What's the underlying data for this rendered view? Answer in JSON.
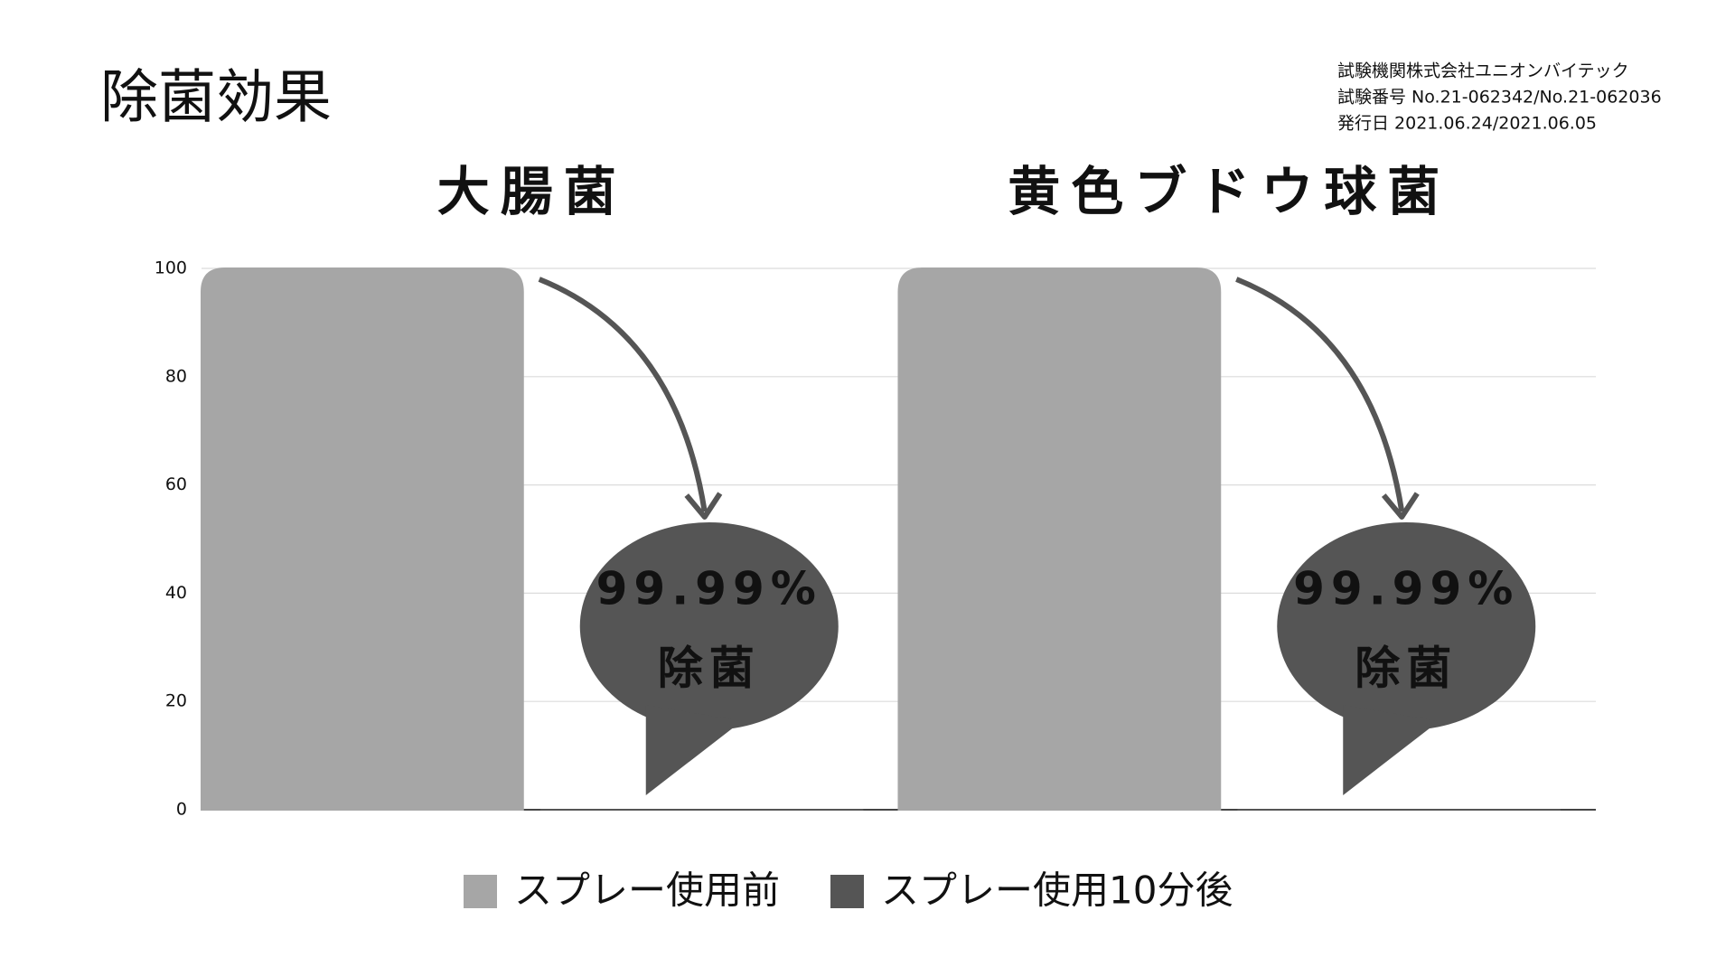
{
  "chart_data": {
    "type": "bar",
    "title": "除菌効果",
    "notes": [
      "試験機関株式会社ユニオンバイテック",
      "試験番号 No.21-062342/No.21-062036",
      "発行日 2021.06.24/2021.06.05"
    ],
    "categories": [
      "大腸菌",
      "黄色ブドウ球菌"
    ],
    "series": [
      {
        "name": "スプレー使用前",
        "color": "#a6a6a6",
        "values": [
          100,
          100
        ]
      },
      {
        "name": "スプレー使用10分後",
        "color": "#555555",
        "values": [
          0.01,
          0.01
        ]
      }
    ],
    "annotations": [
      {
        "lines": [
          "99.99%",
          "除菌"
        ]
      },
      {
        "lines": [
          "99.99%",
          "除菌"
        ]
      }
    ],
    "ylim": [
      0,
      100
    ],
    "yticks": [
      0,
      20,
      40,
      60,
      80,
      100
    ],
    "grid": true,
    "legend": "bottom"
  }
}
